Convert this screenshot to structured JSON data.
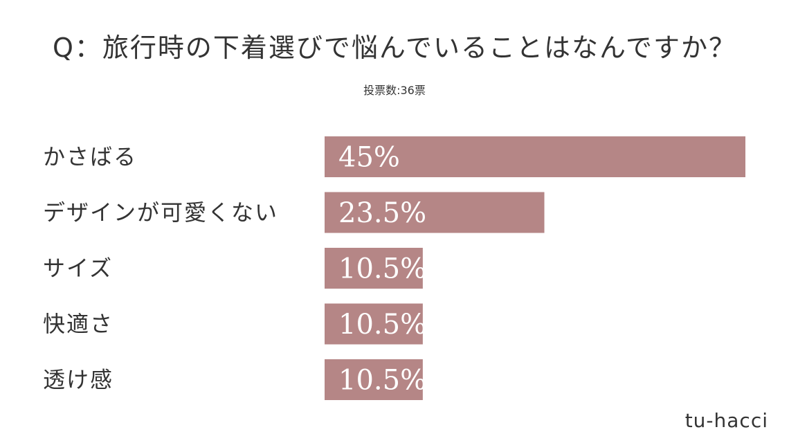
{
  "title": "Q：旅行時の下着選びで悩んでいることはなんですか？",
  "subtitle": "投票数:36票",
  "brand": "tu-hacci",
  "colors": {
    "bar": "#b58686",
    "bar_text": "#ffffff",
    "text": "#333333"
  },
  "chart_data": {
    "type": "bar",
    "orientation": "horizontal",
    "categories": [
      "かさばる",
      "デザインが可愛くない",
      "サイズ",
      "快適さ",
      "透け感"
    ],
    "values": [
      45,
      23.5,
      10.5,
      10.5,
      10.5
    ],
    "value_labels": [
      "45%",
      "23.5%",
      "10.5%",
      "10.5%",
      "10.5%"
    ],
    "unit": "%",
    "title": "Q：旅行時の下着選びで悩んでいることはなんですか？",
    "xlabel": "",
    "ylabel": "",
    "grid": false,
    "legend": "none"
  }
}
